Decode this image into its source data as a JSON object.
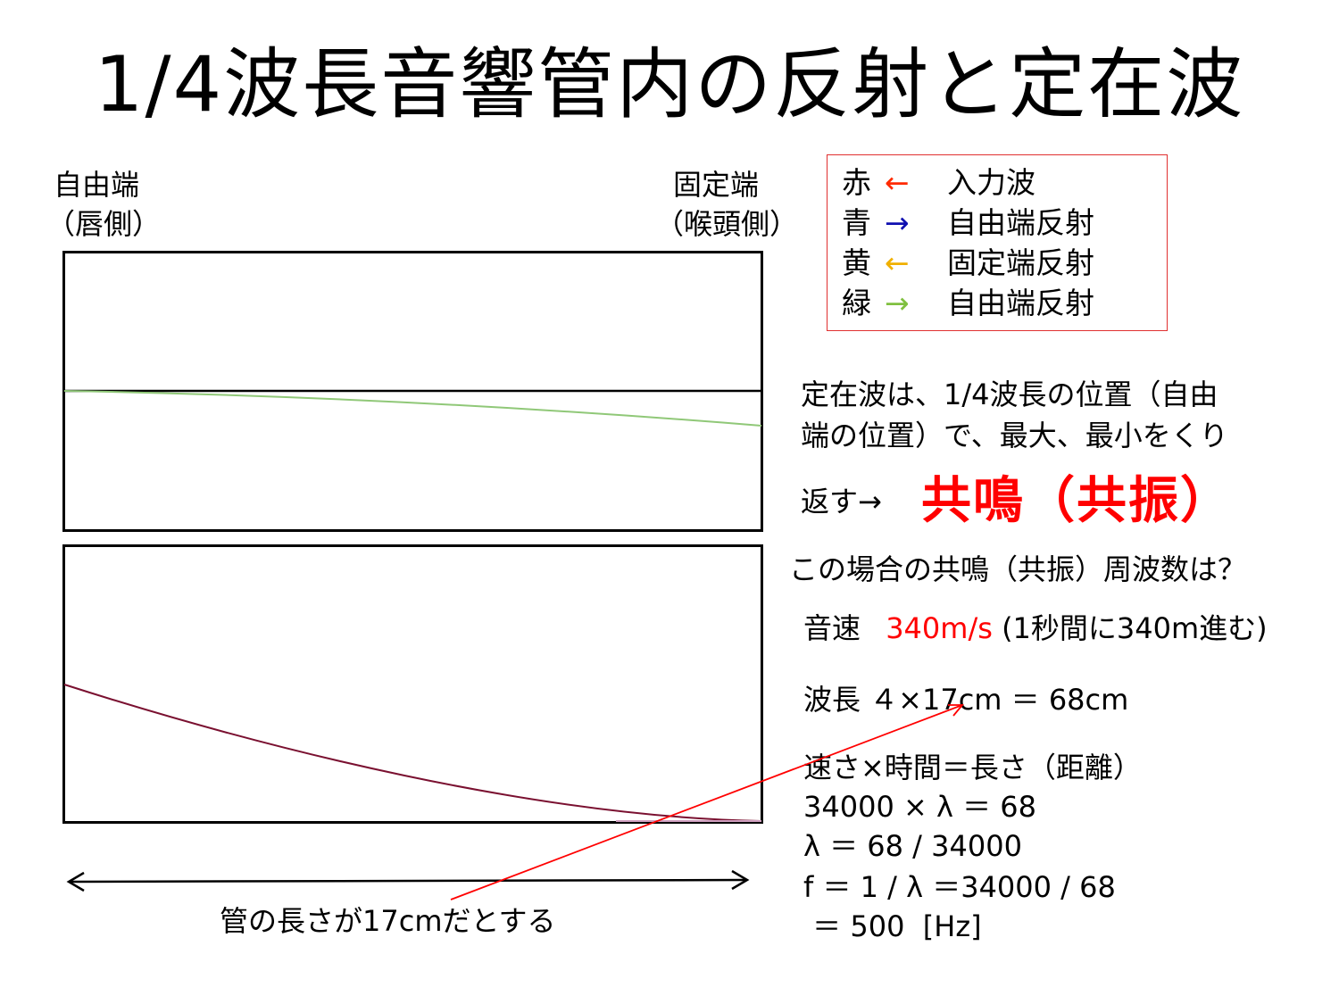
{
  "title": "1/4波長音響管内の反射と定在波",
  "free_end": {
    "label": "自由端",
    "sub": "（唇側）"
  },
  "fixed_end": {
    "label": "固定端",
    "sub": "（喉頭側）"
  },
  "legend": [
    {
      "color_word": "赤",
      "arrow": "←",
      "arrow_color": "#ff2a00",
      "text": "入力波"
    },
    {
      "color_word": "青",
      "arrow": "→",
      "arrow_color": "#1010b0",
      "text": "自由端反射"
    },
    {
      "color_word": "黄",
      "arrow": "←",
      "arrow_color": "#f0b000",
      "text": "固定端反射"
    },
    {
      "color_word": "緑",
      "arrow": "→",
      "arrow_color": "#80c040",
      "text": "自由端反射"
    }
  ],
  "note": {
    "line1": "定在波は、1/4波長の位置（自由",
    "line2": "端の位置）で、最大、最小をくり",
    "line3": "返す→",
    "highlight": "共鳴（共振）"
  },
  "question": "この場合の共鳴（共振）周波数は？",
  "sound_speed": {
    "label": "音速",
    "value": "340m/s",
    "note": "(1秒間に340m進む)"
  },
  "wavelength": "波長 ４×17cm ＝ 68cm",
  "formula": [
    "速さ×時間＝長さ（距離）",
    "34000 × λ ＝ 68",
    "λ ＝ 68 / 34000",
    "f ＝ 1 / λ ＝34000 / 68",
    " ＝ 500  [Hz]"
  ],
  "tube_length_label": "管の長さが17cmだとする",
  "colors": {
    "upper_wave": "#90c878",
    "lower_wave": "#7a1030",
    "pointer": "#ff0000"
  }
}
